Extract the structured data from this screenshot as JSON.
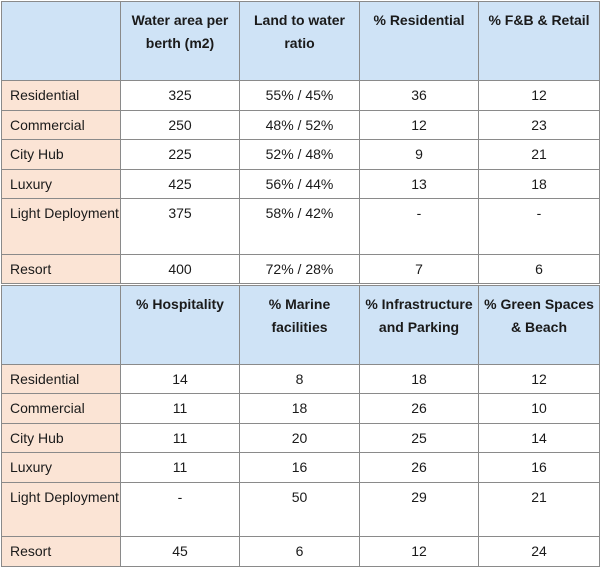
{
  "table1": {
    "headers": [
      "",
      "Water area per berth (m2)",
      "Land to water ratio",
      "% Residential",
      "% F&B & Retail"
    ],
    "rows": [
      [
        "Residential",
        "325",
        "55% / 45%",
        "36",
        "12"
      ],
      [
        "Commercial",
        "250",
        "48% / 52%",
        "12",
        "23"
      ],
      [
        "City Hub",
        "225",
        "52% / 48%",
        "9",
        "21"
      ],
      [
        "Luxury",
        "425",
        "56% / 44%",
        "13",
        "18"
      ],
      [
        "Light Deployment",
        "375",
        "58% / 42%",
        "-",
        "-"
      ],
      [
        "Resort",
        "400",
        "72% / 28%",
        "7",
        "6"
      ]
    ]
  },
  "table2": {
    "headers": [
      "",
      "% Hospitality",
      "% Marine facilities",
      "% Infrastructure and Parking",
      "% Green Spaces & Beach"
    ],
    "rows": [
      [
        "Residential",
        "14",
        "8",
        "18",
        "12"
      ],
      [
        "Commercial",
        "11",
        "18",
        "26",
        "10"
      ],
      [
        "City Hub",
        "11",
        "20",
        "25",
        "14"
      ],
      [
        "Luxury",
        "11",
        "16",
        "26",
        "16"
      ],
      [
        "Light Deployment",
        "-",
        "50",
        "29",
        "21"
      ],
      [
        "Resort",
        "45",
        "6",
        "12",
        "24"
      ]
    ]
  }
}
